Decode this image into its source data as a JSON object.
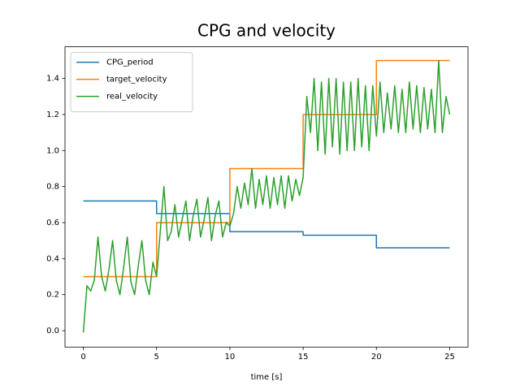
{
  "chart_data": {
    "type": "line",
    "title": "CPG and velocity",
    "x_label": "time [s]",
    "xlim": [
      -1.25,
      26.25
    ],
    "xticks": [
      0,
      5,
      10,
      15,
      20,
      25
    ],
    "ylim": [
      -0.091,
      1.576
    ],
    "yticks": [
      {
        "value": 0,
        "label": "0.0"
      },
      0.2,
      0.4,
      0.6,
      0.8,
      {
        "value": 1,
        "label": "1.0"
      },
      1.2,
      1.4
    ],
    "grid": false,
    "legend": "upper left",
    "series": [
      {
        "name": "CPG_period",
        "color": "#1f77b4",
        "x": [
          0,
          5,
          5,
          10,
          10,
          15,
          15,
          20,
          20,
          25
        ],
        "values": [
          0.72,
          0.72,
          0.65,
          0.65,
          0.55,
          0.55,
          0.53,
          0.53,
          0.46,
          0.46
        ]
      },
      {
        "name": "target_velocity",
        "color": "#ff7f0e",
        "x": [
          0,
          5,
          5,
          10,
          10,
          15,
          15,
          20,
          20,
          25
        ],
        "values": [
          0.3,
          0.3,
          0.6,
          0.6,
          0.9,
          0.9,
          1.2,
          1.2,
          1.5,
          1.5
        ]
      },
      {
        "name": "real_velocity",
        "color": "#2ca02c",
        "x": [
          0,
          0.25,
          0.5,
          0.75,
          1,
          1.25,
          1.5,
          1.75,
          2,
          2.25,
          2.5,
          2.75,
          3,
          3.25,
          3.5,
          3.75,
          4,
          4.25,
          4.5,
          4.75,
          5,
          5.25,
          5.5,
          5.75,
          6,
          6.25,
          6.5,
          6.75,
          7,
          7.25,
          7.5,
          7.75,
          8,
          8.25,
          8.5,
          8.75,
          9,
          9.25,
          9.5,
          9.75,
          10,
          10.25,
          10.5,
          10.75,
          11,
          11.25,
          11.5,
          11.75,
          12,
          12.25,
          12.5,
          12.75,
          13,
          13.25,
          13.5,
          13.75,
          14,
          14.25,
          14.5,
          14.75,
          15,
          15.25,
          15.5,
          15.75,
          16,
          16.25,
          16.5,
          16.75,
          17,
          17.25,
          17.5,
          17.75,
          18,
          18.25,
          18.5,
          18.75,
          19,
          19.25,
          19.5,
          19.75,
          20,
          20.25,
          20.5,
          20.75,
          21,
          21.25,
          21.5,
          21.75,
          22,
          22.25,
          22.5,
          22.75,
          23,
          23.25,
          23.5,
          23.75,
          24,
          24.25,
          24.5,
          24.75,
          25
        ],
        "values": [
          -0.01,
          0.25,
          0.22,
          0.28,
          0.52,
          0.3,
          0.22,
          0.34,
          0.5,
          0.28,
          0.2,
          0.35,
          0.52,
          0.27,
          0.2,
          0.36,
          0.5,
          0.28,
          0.2,
          0.38,
          0.3,
          0.55,
          0.8,
          0.5,
          0.55,
          0.7,
          0.52,
          0.62,
          0.72,
          0.5,
          0.64,
          0.73,
          0.52,
          0.62,
          0.74,
          0.5,
          0.64,
          0.72,
          0.52,
          0.6,
          0.58,
          0.65,
          0.8,
          0.68,
          0.82,
          0.7,
          0.9,
          0.68,
          0.84,
          0.7,
          0.86,
          0.68,
          0.85,
          0.7,
          0.86,
          0.68,
          0.86,
          0.72,
          0.84,
          0.75,
          0.85,
          1.3,
          1.1,
          1.4,
          1.0,
          1.38,
          0.98,
          1.4,
          1.02,
          1.4,
          0.98,
          1.38,
          1.0,
          1.38,
          1.0,
          1.4,
          1.02,
          1.36,
          1.0,
          1.36,
          1.08,
          1.38,
          1.1,
          1.32,
          1.12,
          1.36,
          1.1,
          1.34,
          1.1,
          1.38,
          1.12,
          1.36,
          1.1,
          1.35,
          1.12,
          1.34,
          1.1,
          1.5,
          1.1,
          1.3,
          1.2
        ]
      }
    ]
  }
}
